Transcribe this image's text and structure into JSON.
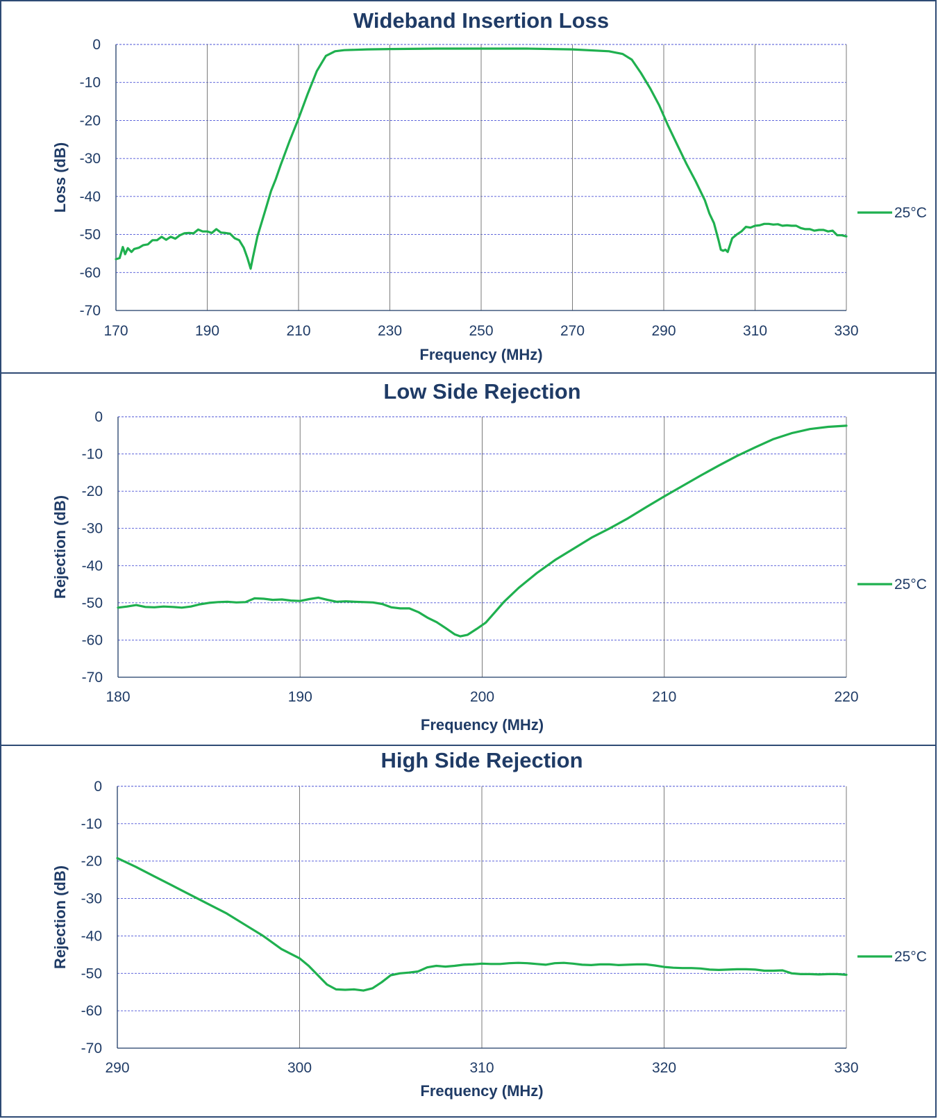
{
  "chart_data": [
    {
      "type": "line",
      "title": "Wideband Insertion Loss",
      "xlabel": "Frequency (MHz)",
      "ylabel": "Loss (dB)",
      "xlim": [
        170,
        330
      ],
      "ylim": [
        -70,
        0
      ],
      "xticks": [
        170,
        190,
        210,
        230,
        250,
        270,
        290,
        310,
        330
      ],
      "yticks": [
        0,
        -10,
        -20,
        -30,
        -40,
        -50,
        -60,
        -70
      ],
      "grid": true,
      "legend": "right",
      "line_color": "#1fb04f",
      "series": [
        {
          "name": "25°C",
          "x": [
            170,
            170.8,
            171.5,
            172,
            172.6,
            173.4,
            174,
            175,
            176,
            177,
            178,
            179,
            180,
            181,
            182,
            183,
            184,
            185,
            186,
            187,
            188,
            189,
            190,
            191,
            192,
            193,
            194,
            195,
            196,
            197,
            198,
            198.8,
            199.5,
            200,
            201,
            202,
            203,
            204,
            205,
            206,
            208,
            210,
            212,
            214,
            216,
            218,
            220,
            225,
            230,
            240,
            250,
            260,
            270,
            278,
            281,
            283,
            285,
            287,
            289,
            291,
            293,
            295,
            297,
            299,
            300,
            301,
            302,
            302.5,
            303,
            303.5,
            304,
            305,
            306,
            307,
            308,
            309,
            310,
            311,
            312,
            313,
            314,
            315,
            316,
            317,
            318,
            319,
            320,
            321,
            322,
            323,
            324,
            325,
            326,
            327,
            328,
            329,
            330
          ],
          "y": [
            -56.5,
            -56.2,
            -53.3,
            -55.2,
            -53.6,
            -54.6,
            -53.8,
            -53.5,
            -52.8,
            -52.6,
            -51.5,
            -51.5,
            -50.6,
            -51.4,
            -50.6,
            -51.1,
            -50.2,
            -49.7,
            -49.6,
            -49.7,
            -48.7,
            -49.2,
            -49.2,
            -49.6,
            -48.6,
            -49.5,
            -49.6,
            -49.8,
            -51.0,
            -51.5,
            -53.5,
            -56.2,
            -59.0,
            -56.0,
            -50.5,
            -46.5,
            -42.5,
            -38.5,
            -35.5,
            -32.0,
            -25.5,
            -19.5,
            -13.0,
            -7.0,
            -3.0,
            -1.8,
            -1.5,
            -1.3,
            -1.2,
            -1.1,
            -1.1,
            -1.1,
            -1.3,
            -1.8,
            -2.5,
            -4.0,
            -7.5,
            -11.5,
            -16.0,
            -21.5,
            -26.5,
            -31.5,
            -36.0,
            -41.0,
            -44.5,
            -47.0,
            -51.5,
            -54.0,
            -54.3,
            -54.0,
            -54.6,
            -51.0,
            -50.0,
            -49.2,
            -48.0,
            -48.2,
            -47.7,
            -47.6,
            -47.2,
            -47.2,
            -47.4,
            -47.3,
            -47.7,
            -47.6,
            -47.7,
            -47.7,
            -48.3,
            -48.6,
            -48.6,
            -49.0,
            -48.8,
            -48.8,
            -49.2,
            -49.0,
            -50.2,
            -50.2,
            -50.5
          ]
        }
      ]
    },
    {
      "type": "line",
      "title": "Low Side Rejection",
      "xlabel": "Frequency (MHz)",
      "ylabel": "Rejection (dB)",
      "xlim": [
        180,
        220
      ],
      "ylim": [
        -70,
        0
      ],
      "xticks": [
        180,
        190,
        200,
        210,
        220
      ],
      "yticks": [
        0,
        -10,
        -20,
        -30,
        -40,
        -50,
        -60,
        -70
      ],
      "grid": true,
      "legend": "right",
      "line_color": "#1fb04f",
      "series": [
        {
          "name": "25°C",
          "x": [
            180,
            180.5,
            181,
            181.5,
            182,
            182.5,
            183,
            183.5,
            184,
            184.5,
            185,
            185.5,
            186,
            186.5,
            187,
            187.5,
            188,
            188.5,
            189,
            189.5,
            190,
            190.5,
            191,
            191.5,
            192,
            192.5,
            193,
            193.5,
            194,
            194.5,
            195,
            195.5,
            196,
            196.5,
            197,
            197.5,
            198,
            198.5,
            198.8,
            199.2,
            199.7,
            200.2,
            200.7,
            201.2,
            202,
            203,
            204,
            205,
            206,
            207,
            208,
            209,
            210,
            211,
            212,
            213,
            214,
            215,
            216,
            217,
            218,
            219,
            220
          ],
          "y": [
            -51.3,
            -51.0,
            -50.6,
            -51.1,
            -51.2,
            -51.0,
            -51.1,
            -51.3,
            -51.0,
            -50.4,
            -50.0,
            -49.8,
            -49.7,
            -49.9,
            -49.8,
            -48.8,
            -48.9,
            -49.2,
            -49.1,
            -49.4,
            -49.5,
            -49.0,
            -48.6,
            -49.2,
            -49.7,
            -49.6,
            -49.7,
            -49.8,
            -49.9,
            -50.3,
            -51.2,
            -51.5,
            -51.5,
            -52.5,
            -54.0,
            -55.2,
            -56.8,
            -58.5,
            -59.0,
            -58.6,
            -57.0,
            -55.3,
            -52.5,
            -49.7,
            -46.0,
            -42.0,
            -38.5,
            -35.5,
            -32.5,
            -30.0,
            -27.3,
            -24.3,
            -21.4,
            -18.6,
            -15.8,
            -13.1,
            -10.5,
            -8.2,
            -6.0,
            -4.4,
            -3.3,
            -2.7,
            -2.4
          ]
        }
      ]
    },
    {
      "type": "line",
      "title": "High Side Rejection",
      "xlabel": "Frequency (MHz)",
      "ylabel": "Rejection (dB)",
      "xlim": [
        290,
        330
      ],
      "ylim": [
        -70,
        0
      ],
      "xticks": [
        290,
        300,
        310,
        320,
        330
      ],
      "yticks": [
        0,
        -10,
        -20,
        -30,
        -40,
        -50,
        -60,
        -70
      ],
      "grid": true,
      "legend": "right",
      "line_color": "#1fb04f",
      "series": [
        {
          "name": "25°C",
          "x": [
            290,
            291,
            292,
            293,
            294,
            295,
            296,
            297,
            298,
            299,
            300,
            300.5,
            301,
            301.5,
            302,
            302.5,
            303,
            303.5,
            304,
            304.5,
            305,
            305.5,
            306,
            306.5,
            307,
            307.5,
            308,
            308.5,
            309,
            309.5,
            310,
            310.5,
            311,
            311.5,
            312,
            312.5,
            313,
            313.5,
            314,
            314.5,
            315,
            315.5,
            316,
            316.5,
            317,
            317.5,
            318,
            318.5,
            319,
            319.5,
            320,
            320.5,
            321,
            321.5,
            322,
            322.5,
            323,
            323.5,
            324,
            324.5,
            325,
            325.5,
            326,
            326.5,
            327,
            327.5,
            328,
            328.5,
            329,
            329.5,
            330
          ],
          "y": [
            -19.2,
            -21.5,
            -24.0,
            -26.5,
            -29.0,
            -31.5,
            -34.0,
            -37.0,
            -40.0,
            -43.5,
            -46.0,
            -48.0,
            -50.5,
            -53.0,
            -54.3,
            -54.4,
            -54.3,
            -54.6,
            -54.0,
            -52.4,
            -50.5,
            -50.0,
            -49.8,
            -49.5,
            -48.4,
            -48.0,
            -48.2,
            -48.0,
            -47.7,
            -47.6,
            -47.4,
            -47.5,
            -47.5,
            -47.3,
            -47.2,
            -47.3,
            -47.5,
            -47.7,
            -47.3,
            -47.2,
            -47.4,
            -47.7,
            -47.8,
            -47.6,
            -47.6,
            -47.8,
            -47.7,
            -47.6,
            -47.6,
            -47.9,
            -48.3,
            -48.5,
            -48.6,
            -48.6,
            -48.7,
            -49.0,
            -49.1,
            -49.0,
            -48.9,
            -48.9,
            -49.0,
            -49.3,
            -49.3,
            -49.2,
            -50.0,
            -50.2,
            -50.2,
            -50.3,
            -50.2,
            -50.2,
            -50.4
          ]
        }
      ]
    }
  ]
}
